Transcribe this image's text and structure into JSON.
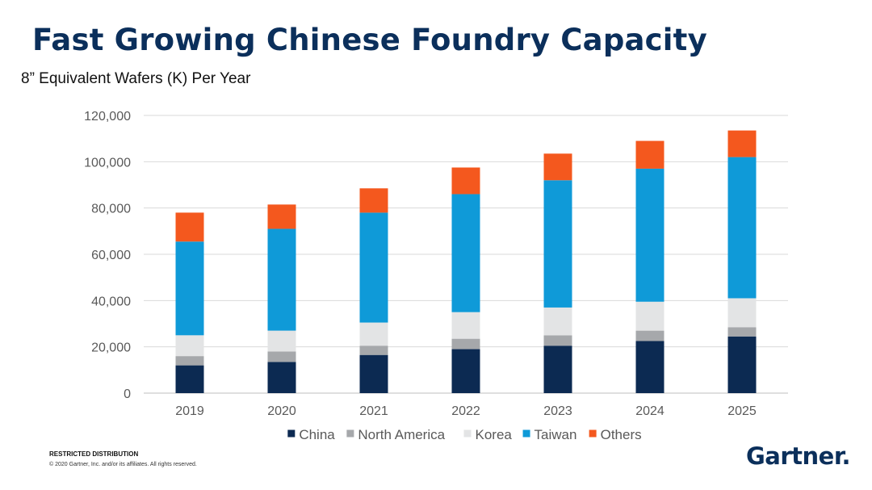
{
  "slide": {
    "title": "Fast Growing Chinese Foundry Capacity",
    "subtitle": "8” Equivalent Wafers (K) Per Year",
    "restricted": "RESTRICTED DISTRIBUTION",
    "copyright": "© 2020 Gartner, Inc. and/or its affiliates. All rights reserved.",
    "logo": "Gartner."
  },
  "chart_data": {
    "type": "bar",
    "stacked": true,
    "categories": [
      "2019",
      "2020",
      "2021",
      "2022",
      "2023",
      "2024",
      "2025"
    ],
    "series": [
      {
        "name": "China",
        "color": "#0c2a52",
        "values": [
          12000,
          13500,
          16500,
          19000,
          20500,
          22500,
          24500
        ]
      },
      {
        "name": "North America",
        "color": "#a6a8ab",
        "values": [
          4000,
          4500,
          4000,
          4500,
          4500,
          4500,
          4000
        ]
      },
      {
        "name": "Korea",
        "color": "#e3e4e5",
        "values": [
          9000,
          9000,
          10000,
          11500,
          12000,
          12500,
          12500
        ]
      },
      {
        "name": "Taiwan",
        "color": "#0f9ad8",
        "values": [
          40500,
          44000,
          47500,
          51000,
          55000,
          57500,
          61000
        ]
      },
      {
        "name": "Others",
        "color": "#f4581e",
        "values": [
          12500,
          10500,
          10500,
          11500,
          11500,
          12000,
          11500
        ]
      }
    ],
    "y_ticks": [
      "0",
      "20,000",
      "40,000",
      "60,000",
      "80,000",
      "100,000",
      "120,000"
    ],
    "ylim": [
      0,
      120000
    ],
    "grid": true,
    "legend": "bottom"
  }
}
